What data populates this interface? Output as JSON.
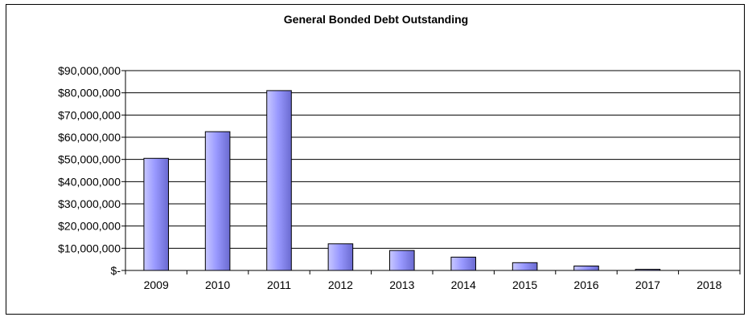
{
  "chart_data": {
    "type": "bar",
    "title": "General Bonded Debt Outstanding",
    "xlabel": "",
    "ylabel": "",
    "categories": [
      "2009",
      "2010",
      "2011",
      "2012",
      "2013",
      "2014",
      "2015",
      "2016",
      "2017",
      "2018"
    ],
    "values": [
      50500000,
      62500000,
      81000000,
      12000000,
      9000000,
      6000000,
      3500000,
      2000000,
      500000,
      0
    ],
    "ylim": [
      0,
      90000000
    ],
    "yticks": [
      0,
      10000000,
      20000000,
      30000000,
      40000000,
      50000000,
      60000000,
      70000000,
      80000000,
      90000000
    ],
    "ytick_labels": [
      "$-",
      "$10,000,000",
      "$20,000,000",
      "$30,000,000",
      "$40,000,000",
      "$50,000,000",
      "$60,000,000",
      "$70,000,000",
      "$80,000,000",
      "$90,000,000"
    ],
    "grid": true,
    "legend": "none",
    "colors": {
      "bar_light": "#c8c8ff",
      "bar_mid": "#9999ff",
      "bar_dark": "#6a6ad0",
      "bar_outline": "#000000",
      "grid": "#000000",
      "frame": "#000000"
    }
  }
}
